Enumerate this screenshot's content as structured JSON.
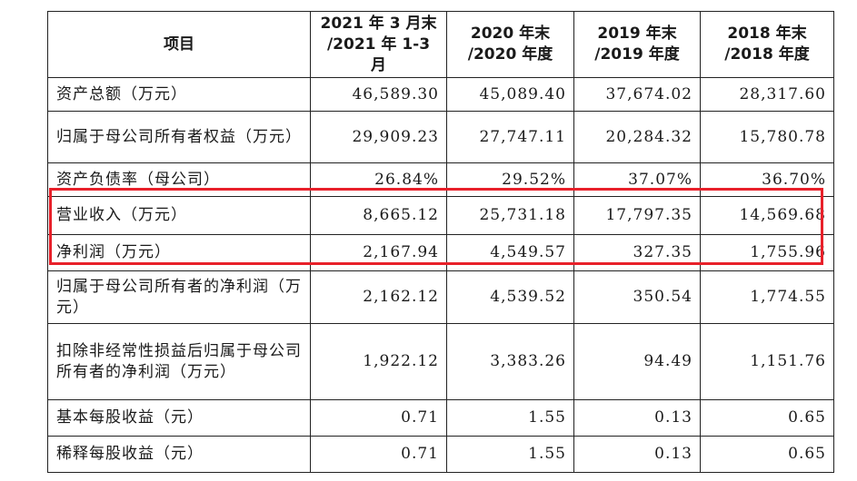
{
  "header": {
    "item": "项目",
    "periods": [
      {
        "line1": "2021 年 3 月末",
        "line2": "/2021 年 1-3 月"
      },
      {
        "line1": "2020 年末",
        "line2": "/2020 年度"
      },
      {
        "line1": "2019 年末",
        "line2": "/2019 年度"
      },
      {
        "line1": "2018 年末",
        "line2": "/2018 年度"
      }
    ]
  },
  "rows": [
    {
      "label": "资产总额（万元）",
      "values": [
        "46,589.30",
        "45,089.40",
        "37,674.02",
        "28,317.60"
      ]
    },
    {
      "label": "归属于母公司所有者权益（万元）",
      "values": [
        "29,909.23",
        "27,747.11",
        "20,284.32",
        "15,780.78"
      ]
    },
    {
      "label": "资产负债率（母公司）",
      "values": [
        "26.84%",
        "29.52%",
        "37.07%",
        "36.70%"
      ]
    },
    {
      "label": "营业收入（万元）",
      "values": [
        "8,665.12",
        "25,731.18",
        "17,797.35",
        "14,569.68"
      ]
    },
    {
      "label": "净利润（万元）",
      "values": [
        "2,167.94",
        "4,549.57",
        "327.35",
        "1,755.96"
      ]
    },
    {
      "label": "归属于母公司所有者的净利润（万元）",
      "values": [
        "2,162.12",
        "4,539.52",
        "350.54",
        "1,774.55"
      ]
    },
    {
      "label": "扣除非经常性损益后归属于母公司所有者的净利润（万元）",
      "values": [
        "1,922.12",
        "3,383.26",
        "94.49",
        "1,151.76"
      ]
    },
    {
      "label": "基本每股收益（元）",
      "values": [
        "0.71",
        "1.55",
        "0.13",
        "0.65"
      ]
    },
    {
      "label": "稀释每股收益（元）",
      "values": [
        "0.71",
        "1.55",
        "0.13",
        "0.65"
      ]
    }
  ],
  "highlight_color": "#e8202a"
}
